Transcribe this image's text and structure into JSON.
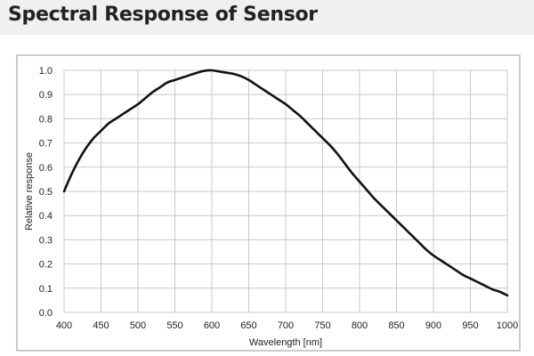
{
  "header": {
    "title": "Spectral Response of Sensor"
  },
  "colors": {
    "curve": "#111111",
    "grid": "#c8c8c8",
    "frame": "#999999",
    "title_band": "#f0f0f0"
  },
  "chart_data": {
    "type": "line",
    "title": "Spectral Response of Sensor",
    "xlabel": "Wavelength  [nm]",
    "ylabel": "Relative  response",
    "xlim": [
      400,
      1000
    ],
    "ylim": [
      0.0,
      1.0
    ],
    "x_ticks": [
      400,
      450,
      500,
      550,
      600,
      650,
      700,
      750,
      800,
      850,
      900,
      950,
      1000
    ],
    "y_ticks": [
      0.0,
      0.1,
      0.2,
      0.3,
      0.4,
      0.5,
      0.6,
      0.7,
      0.8,
      0.9,
      1.0
    ],
    "x_tick_labels": [
      "400",
      "450",
      "500",
      "550",
      "600",
      "650",
      "700",
      "750",
      "800",
      "850",
      "900",
      "950",
      "1000"
    ],
    "y_tick_labels": [
      "0.0",
      "0.1",
      "0.2",
      "0.3",
      "0.4",
      "0.5",
      "0.6",
      "0.7",
      "0.8",
      "0.9",
      "1.0"
    ],
    "grid": true,
    "series": [
      {
        "x": [
          400,
          410,
          420,
          430,
          440,
          450,
          460,
          470,
          480,
          490,
          500,
          510,
          520,
          530,
          540,
          550,
          560,
          570,
          580,
          590,
          600,
          610,
          620,
          630,
          640,
          650,
          660,
          670,
          680,
          690,
          700,
          710,
          720,
          730,
          740,
          750,
          760,
          770,
          780,
          790,
          800,
          810,
          820,
          830,
          840,
          850,
          860,
          870,
          880,
          890,
          900,
          910,
          920,
          930,
          940,
          950,
          960,
          970,
          980,
          990,
          1000
        ],
        "values": [
          0.5,
          0.57,
          0.63,
          0.68,
          0.72,
          0.75,
          0.78,
          0.8,
          0.82,
          0.84,
          0.86,
          0.885,
          0.91,
          0.93,
          0.95,
          0.96,
          0.97,
          0.98,
          0.99,
          0.998,
          1.0,
          0.995,
          0.99,
          0.985,
          0.975,
          0.96,
          0.94,
          0.92,
          0.9,
          0.88,
          0.86,
          0.835,
          0.81,
          0.78,
          0.75,
          0.72,
          0.69,
          0.655,
          0.615,
          0.575,
          0.54,
          0.505,
          0.47,
          0.44,
          0.41,
          0.38,
          0.35,
          0.32,
          0.29,
          0.26,
          0.235,
          0.215,
          0.195,
          0.175,
          0.155,
          0.14,
          0.125,
          0.11,
          0.095,
          0.085,
          0.07
        ]
      }
    ]
  }
}
